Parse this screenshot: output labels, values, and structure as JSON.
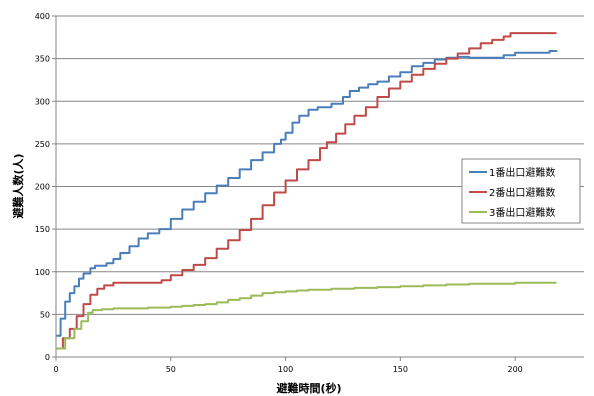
{
  "chart_data": {
    "type": "line",
    "title": "",
    "xlabel": "避難時間(秒)",
    "ylabel": "避難人数(人)",
    "xlim": [
      0,
      230
    ],
    "ylim": [
      0,
      400
    ],
    "x_ticks": [
      "0",
      "50",
      "100",
      "150",
      "200"
    ],
    "y_ticks": [
      "0",
      "50",
      "100",
      "150",
      "200",
      "250",
      "300",
      "350",
      "400"
    ],
    "grid": "horizontal",
    "legend_position": "right",
    "series": [
      {
        "name": "1番出口避難数",
        "color": "#4a7ebb",
        "points": [
          [
            0,
            25
          ],
          [
            2,
            45
          ],
          [
            4,
            65
          ],
          [
            6,
            75
          ],
          [
            8,
            83
          ],
          [
            10,
            92
          ],
          [
            12,
            98
          ],
          [
            15,
            104
          ],
          [
            17,
            107
          ],
          [
            22,
            110
          ],
          [
            25,
            115
          ],
          [
            28,
            122
          ],
          [
            32,
            130
          ],
          [
            36,
            139
          ],
          [
            40,
            145
          ],
          [
            45,
            150
          ],
          [
            50,
            162
          ],
          [
            55,
            173
          ],
          [
            60,
            182
          ],
          [
            65,
            192
          ],
          [
            70,
            201
          ],
          [
            75,
            210
          ],
          [
            80,
            220
          ],
          [
            85,
            231
          ],
          [
            90,
            240
          ],
          [
            95,
            250
          ],
          [
            98,
            255
          ],
          [
            100,
            263
          ],
          [
            103,
            275
          ],
          [
            106,
            283
          ],
          [
            110,
            290
          ],
          [
            114,
            293
          ],
          [
            120,
            297
          ],
          [
            125,
            305
          ],
          [
            128,
            312
          ],
          [
            132,
            316
          ],
          [
            136,
            320
          ],
          [
            140,
            323
          ],
          [
            145,
            329
          ],
          [
            150,
            334
          ],
          [
            155,
            341
          ],
          [
            160,
            345
          ],
          [
            165,
            349
          ],
          [
            170,
            351
          ],
          [
            175,
            352
          ],
          [
            180,
            351
          ],
          [
            185,
            351
          ],
          [
            190,
            351
          ],
          [
            195,
            354
          ],
          [
            200,
            357
          ],
          [
            205,
            357
          ],
          [
            210,
            357
          ],
          [
            215,
            359
          ],
          [
            218,
            360
          ]
        ]
      },
      {
        "name": "2番出口避難数",
        "color": "#be4b48",
        "points": [
          [
            0,
            10
          ],
          [
            3,
            22
          ],
          [
            6,
            33
          ],
          [
            9,
            48
          ],
          [
            12,
            62
          ],
          [
            15,
            73
          ],
          [
            18,
            80
          ],
          [
            21,
            84
          ],
          [
            25,
            87
          ],
          [
            30,
            87
          ],
          [
            35,
            87
          ],
          [
            40,
            87
          ],
          [
            44,
            87
          ],
          [
            46,
            90
          ],
          [
            50,
            96
          ],
          [
            55,
            102
          ],
          [
            60,
            108
          ],
          [
            65,
            116
          ],
          [
            70,
            127
          ],
          [
            75,
            137
          ],
          [
            80,
            149
          ],
          [
            85,
            162
          ],
          [
            90,
            178
          ],
          [
            95,
            193
          ],
          [
            100,
            207
          ],
          [
            105,
            220
          ],
          [
            110,
            231
          ],
          [
            115,
            245
          ],
          [
            118,
            252
          ],
          [
            122,
            262
          ],
          [
            126,
            273
          ],
          [
            130,
            283
          ],
          [
            135,
            293
          ],
          [
            140,
            305
          ],
          [
            145,
            315
          ],
          [
            150,
            323
          ],
          [
            155,
            331
          ],
          [
            160,
            338
          ],
          [
            165,
            344
          ],
          [
            170,
            350
          ],
          [
            175,
            356
          ],
          [
            180,
            362
          ],
          [
            185,
            368
          ],
          [
            190,
            372
          ],
          [
            195,
            376
          ],
          [
            198,
            380
          ],
          [
            205,
            380
          ],
          [
            212,
            380
          ],
          [
            218,
            380
          ]
        ]
      },
      {
        "name": "3番出口避難数",
        "color": "#9bbb59",
        "points": [
          [
            0,
            10
          ],
          [
            4,
            22
          ],
          [
            8,
            33
          ],
          [
            11,
            42
          ],
          [
            14,
            52
          ],
          [
            16,
            55
          ],
          [
            20,
            56
          ],
          [
            25,
            57
          ],
          [
            30,
            57
          ],
          [
            40,
            58
          ],
          [
            45,
            58
          ],
          [
            50,
            59
          ],
          [
            55,
            60
          ],
          [
            60,
            61
          ],
          [
            65,
            62
          ],
          [
            70,
            64
          ],
          [
            75,
            67
          ],
          [
            80,
            69
          ],
          [
            85,
            72
          ],
          [
            90,
            75
          ],
          [
            95,
            76
          ],
          [
            100,
            77
          ],
          [
            105,
            78
          ],
          [
            110,
            79
          ],
          [
            120,
            80
          ],
          [
            130,
            81
          ],
          [
            140,
            82
          ],
          [
            150,
            83
          ],
          [
            160,
            84
          ],
          [
            170,
            85
          ],
          [
            180,
            86
          ],
          [
            190,
            86
          ],
          [
            200,
            87
          ],
          [
            210,
            87
          ],
          [
            218,
            87
          ]
        ]
      }
    ]
  }
}
